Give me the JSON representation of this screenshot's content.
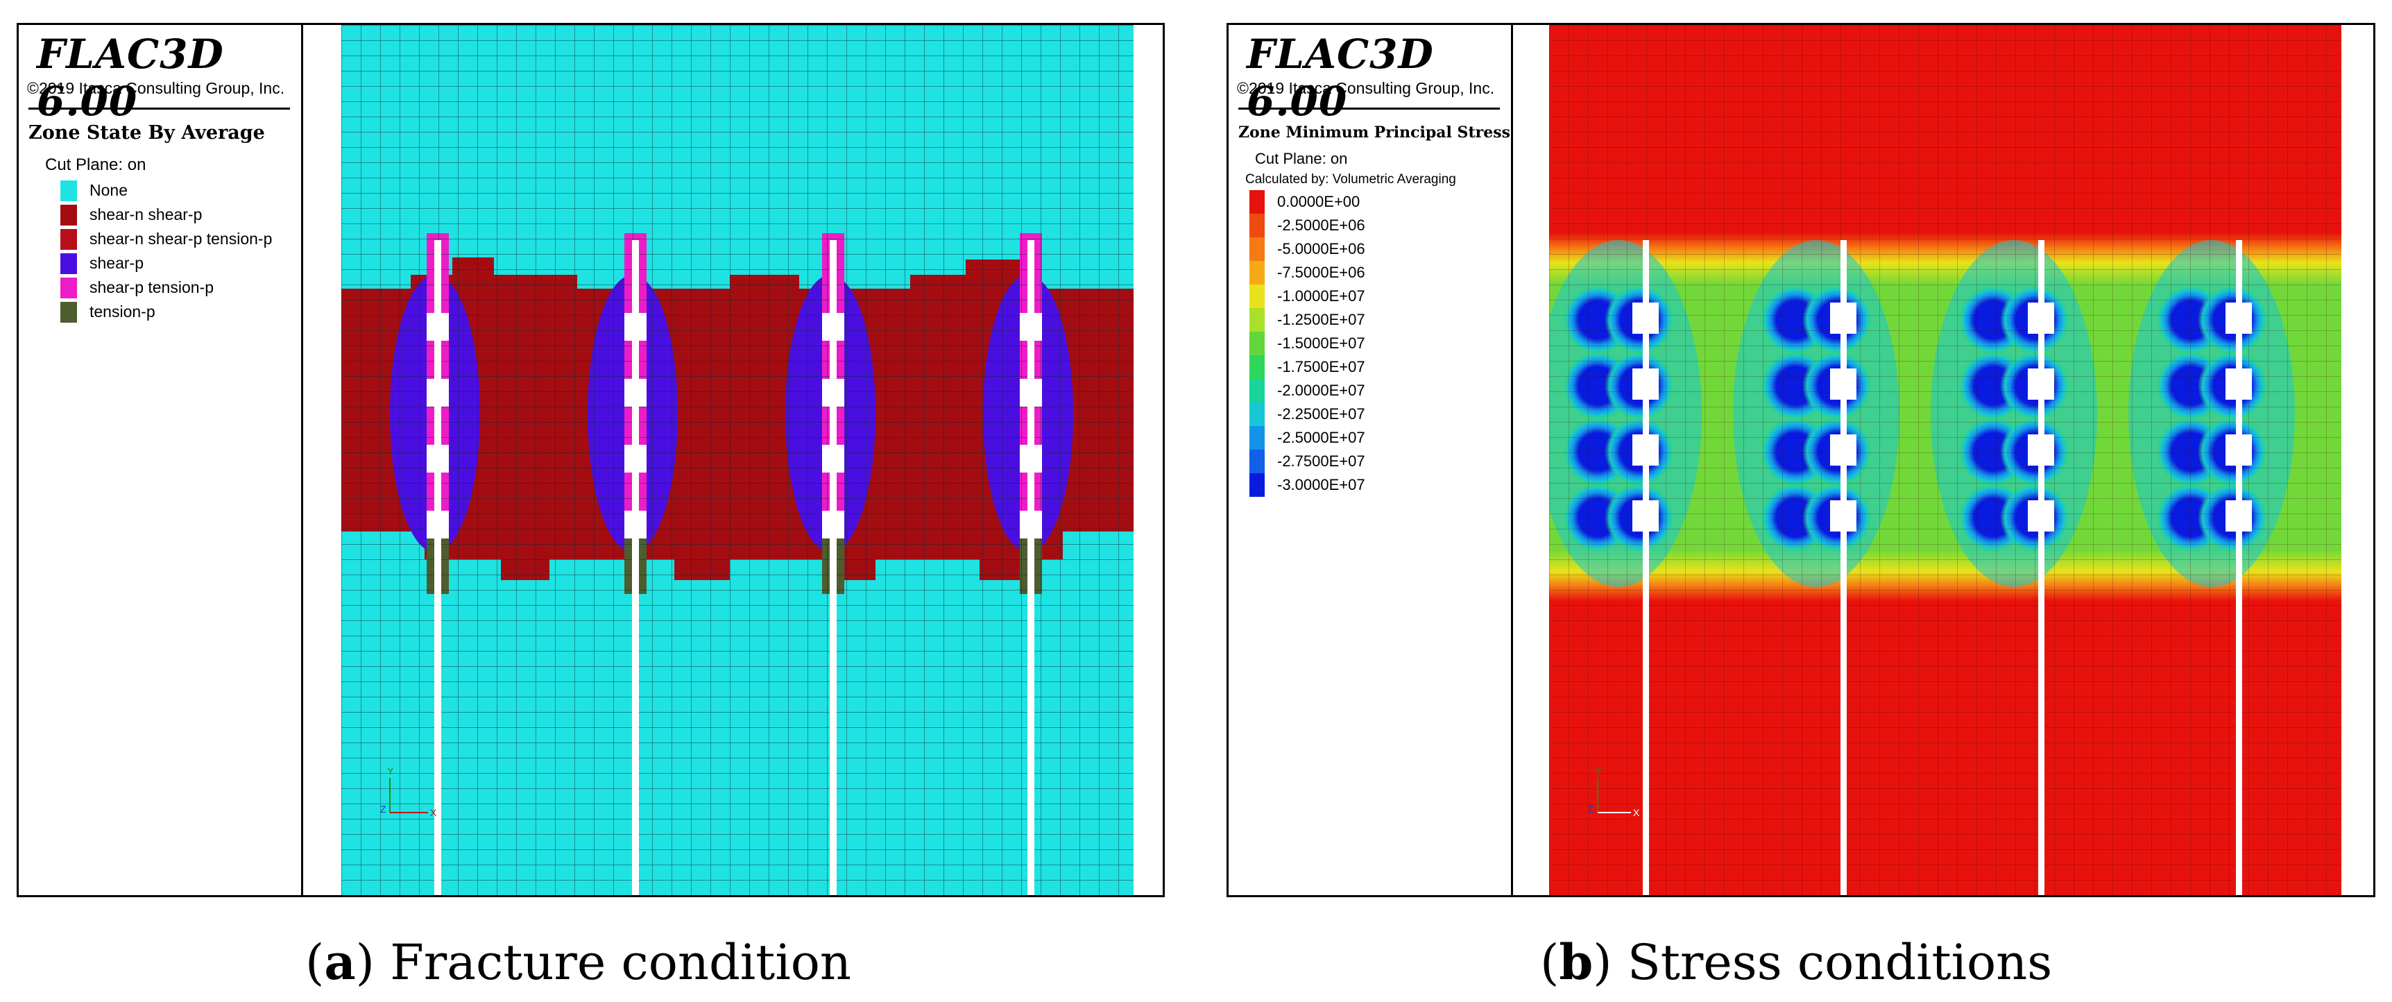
{
  "panels": [
    {
      "app_title": "FLAC3D 6.00",
      "copyright": "©2019 Itasca Consulting Group, Inc.",
      "legend_title": "Zone State By Average",
      "cut_plane": "Cut Plane: on",
      "legend_items": [
        {
          "label": "None",
          "color": "#1fe3e3"
        },
        {
          "label": "shear-n shear-p",
          "color": "#a30d12"
        },
        {
          "label": "shear-n shear-p tension-p",
          "color": "#b5101a"
        },
        {
          "label": "shear-p",
          "color": "#4a0fe0"
        },
        {
          "label": "shear-p tension-p",
          "color": "#ee1cc8"
        },
        {
          "label": "tension-p",
          "color": "#4d5d2e"
        }
      ],
      "axis_labels": {
        "y": "Y",
        "z": "Z",
        "x": "X"
      },
      "caption_letter": "a",
      "caption_text": "Fracture condition"
    },
    {
      "app_title": "FLAC3D 6.00",
      "copyright": "©2019 Itasca Consulting Group, Inc.",
      "legend_title": "Zone Minimum Principal Stress",
      "cut_plane": "Cut Plane: on",
      "calculated_by": "Calculated by: Volumetric Averaging",
      "contour_scale": [
        {
          "label": "0.0000E+00",
          "color": "#e8120c"
        },
        {
          "label": "-2.5000E+06",
          "color": "#ef4a10"
        },
        {
          "label": "-5.0000E+06",
          "color": "#f57a14"
        },
        {
          "label": "-7.5000E+06",
          "color": "#f7aa16"
        },
        {
          "label": "-1.0000E+07",
          "color": "#e8e31a"
        },
        {
          "label": "-1.2500E+07",
          "color": "#a8e02a"
        },
        {
          "label": "-1.5000E+07",
          "color": "#62d63a"
        },
        {
          "label": "-1.7500E+07",
          "color": "#2ed65a"
        },
        {
          "label": "-2.0000E+07",
          "color": "#18d49a"
        },
        {
          "label": "-2.2500E+07",
          "color": "#16c8d6"
        },
        {
          "label": "-2.5000E+07",
          "color": "#1494e6"
        },
        {
          "label": "-2.7500E+07",
          "color": "#1060ea"
        },
        {
          "label": "-3.0000E+07",
          "color": "#0a1be0"
        }
      ],
      "axis_labels": {
        "y": "Y",
        "z": "Z",
        "x": "X"
      },
      "caption_letter": "b",
      "caption_text": "Stress conditions"
    }
  ],
  "colors": {
    "none": "#1fe3e3",
    "shear_n_shear_p": "#a30d12",
    "shear_p": "#4a0fe0",
    "shear_p_tension_p": "#ee1cc8",
    "tension_p": "#4d5d2e",
    "stress_red": "#e8120c",
    "stress_green": "#72d83a",
    "stress_blue": "#0a1be0"
  }
}
